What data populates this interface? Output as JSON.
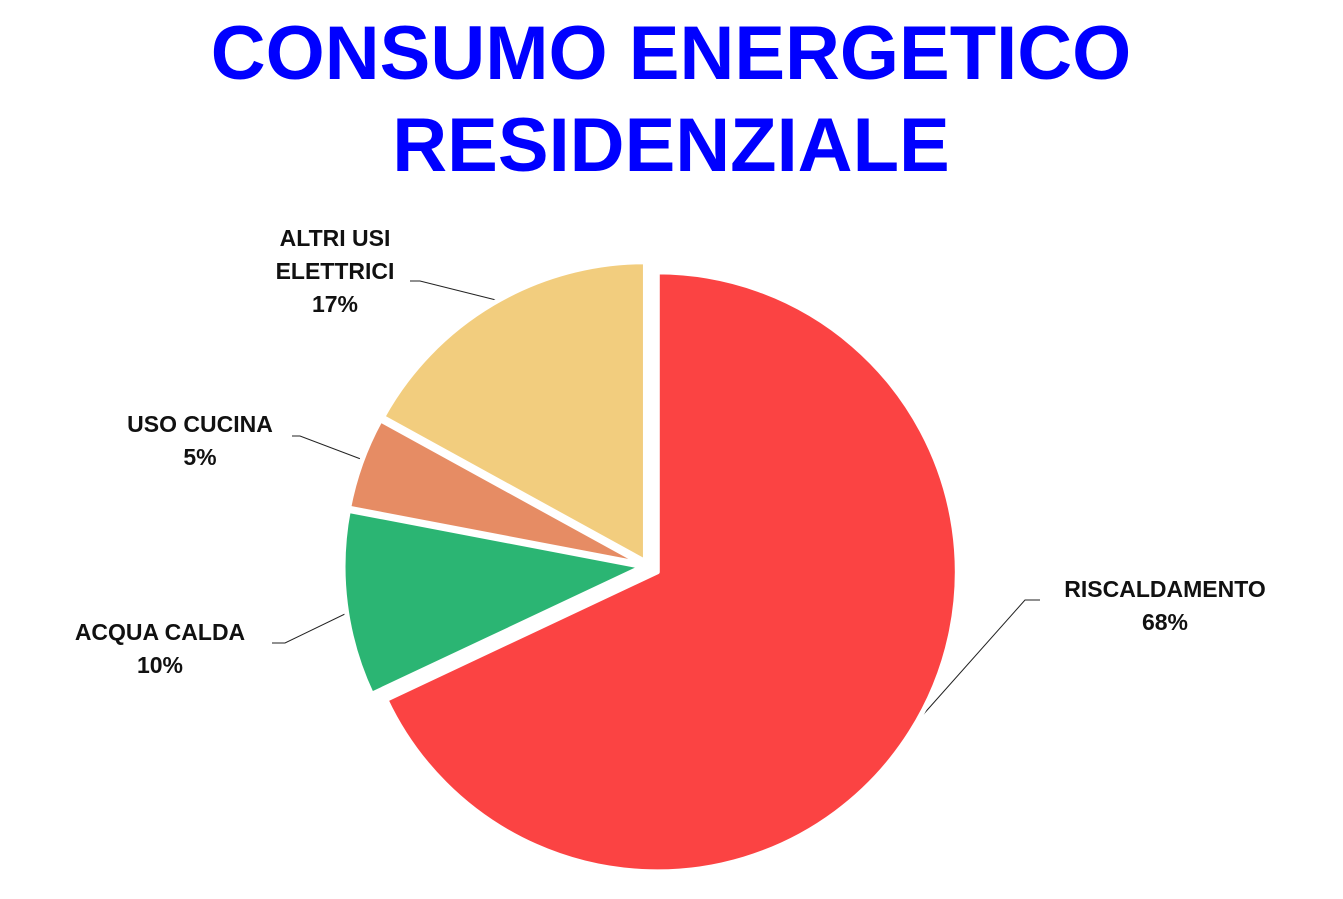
{
  "chart_data": {
    "type": "pie",
    "title": "CONSUMO ENERGETICO RESIDENZIALE",
    "categories": [
      "RISCALDAMENTO",
      "ACQUA CALDA",
      "USO CUCINA",
      "ALTRI USI ELETTRICI"
    ],
    "values": [
      68,
      10,
      5,
      17
    ],
    "value_labels": [
      "68%",
      "10%",
      "5%",
      "17%"
    ],
    "colors": [
      "#fb4343",
      "#2bb573",
      "#e68c64",
      "#f2cd7e"
    ]
  }
}
